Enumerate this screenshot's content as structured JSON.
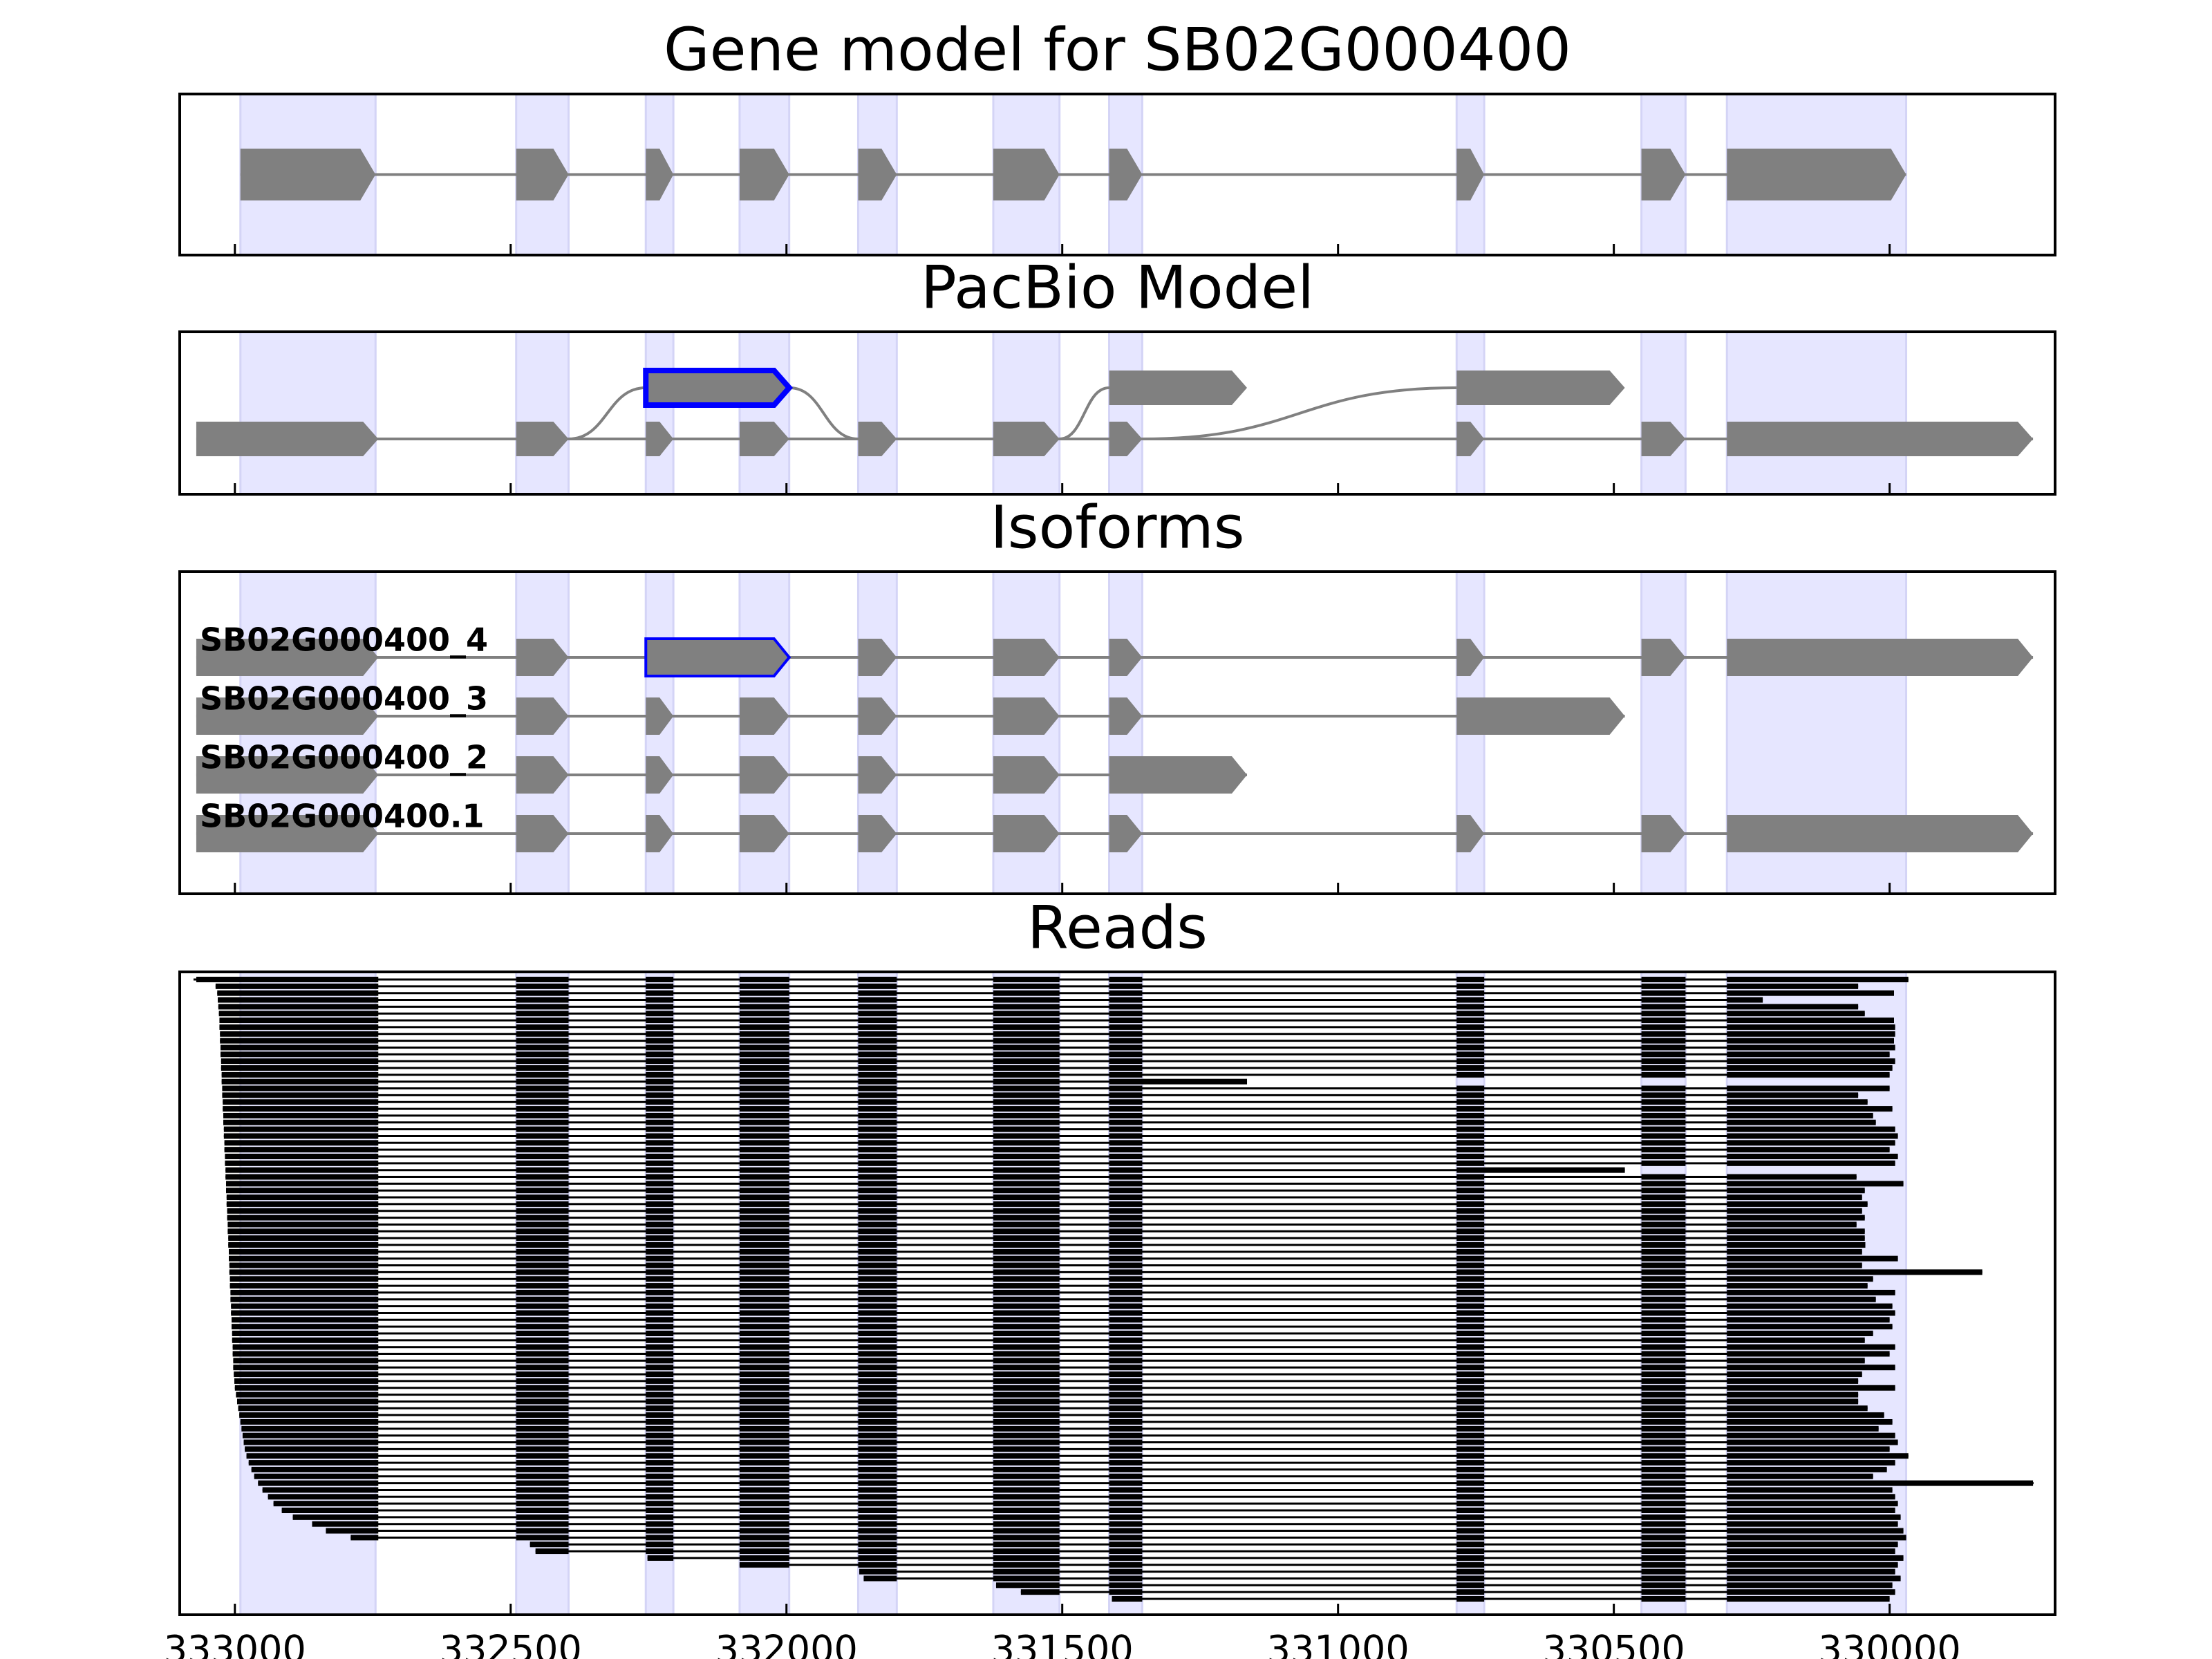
{
  "chart_data": {
    "type": "gene-tracks",
    "xlim": [
      333100,
      329700
    ],
    "xticks": [
      333000,
      332500,
      332000,
      331500,
      331000,
      330500,
      330000
    ],
    "feature_color": "#808080",
    "shade_color": "#e6e6ff",
    "read_color": "#000000",
    "highlight_color": "#0000ff",
    "panels": [
      {
        "type": "gene-model",
        "title": "Gene model for SB02G000400",
        "exons": [
          [
            332990,
            332745
          ],
          [
            332490,
            332395
          ],
          [
            332255,
            332205
          ],
          [
            332085,
            331995
          ],
          [
            331870,
            331800
          ],
          [
            331625,
            331505
          ],
          [
            331415,
            331355
          ],
          [
            330785,
            330735
          ],
          [
            330450,
            330370
          ],
          [
            330295,
            329970
          ]
        ]
      },
      {
        "type": "splice-graph",
        "title": "PacBio Model",
        "exons": [
          [
            333070,
            332740
          ],
          [
            332490,
            332395
          ],
          [
            332255,
            332205
          ],
          [
            332085,
            331995
          ],
          [
            331870,
            331800
          ],
          [
            331625,
            331505
          ],
          [
            331415,
            331355
          ],
          [
            330785,
            330735
          ],
          [
            330450,
            330370
          ],
          [
            330295,
            329740
          ]
        ],
        "alternatives": [
          [
            332255,
            331995
          ],
          [
            331415,
            331165
          ],
          [
            330785,
            330480
          ]
        ],
        "highlight": 0
      },
      {
        "type": "isoforms",
        "title": "Isoforms",
        "isoforms": [
          {
            "name": "SB02G000400_4",
            "exons": [
              [
                333070,
                332740
              ],
              [
                332490,
                332395
              ],
              [
                332255,
                331995
              ],
              [
                331870,
                331800
              ],
              [
                331625,
                331505
              ],
              [
                331415,
                331355
              ],
              [
                330785,
                330735
              ],
              [
                330450,
                330370
              ],
              [
                330295,
                329740
              ]
            ]
          },
          {
            "name": "SB02G000400_3",
            "exons": [
              [
                333070,
                332740
              ],
              [
                332490,
                332395
              ],
              [
                332255,
                332205
              ],
              [
                332085,
                331995
              ],
              [
                331870,
                331800
              ],
              [
                331625,
                331505
              ],
              [
                331415,
                331355
              ],
              [
                330785,
                330480
              ]
            ]
          },
          {
            "name": "SB02G000400_2",
            "exons": [
              [
                333070,
                332740
              ],
              [
                332490,
                332395
              ],
              [
                332255,
                332205
              ],
              [
                332085,
                331995
              ],
              [
                331870,
                331800
              ],
              [
                331625,
                331505
              ],
              [
                331415,
                331165
              ]
            ]
          },
          {
            "name": "SB02G000400.1",
            "exons": [
              [
                333070,
                332740
              ],
              [
                332490,
                332395
              ],
              [
                332255,
                332205
              ],
              [
                332085,
                331995
              ],
              [
                331870,
                331800
              ],
              [
                331625,
                331505
              ],
              [
                331415,
                331355
              ],
              [
                330785,
                330735
              ],
              [
                330450,
                330370
              ],
              [
                330295,
                329740
              ]
            ]
          }
        ],
        "highlight": [
          0,
          2
        ]
      },
      {
        "type": "reads",
        "title": "Reads",
        "reads": [
          [
            333075,
            329966,
            3
          ],
          [
            333035,
            330057,
            3
          ],
          [
            333032,
            329992,
            3
          ],
          [
            333031,
            330230,
            3
          ],
          [
            333030,
            330057,
            3
          ],
          [
            333029,
            330045,
            3
          ],
          [
            333028,
            329992,
            3
          ],
          [
            333028,
            329990,
            3
          ],
          [
            333027,
            329990,
            3
          ],
          [
            333027,
            329992,
            3
          ],
          [
            333026,
            329990,
            3
          ],
          [
            333026,
            330000,
            3
          ],
          [
            333025,
            329990,
            3
          ],
          [
            333025,
            329995,
            3
          ],
          [
            333024,
            330000,
            3
          ],
          [
            333024,
            331165,
            2
          ],
          [
            333023,
            330000,
            3
          ],
          [
            333023,
            330057,
            3
          ],
          [
            333022,
            330040,
            3
          ],
          [
            333022,
            329995,
            3
          ],
          [
            333021,
            330030,
            3
          ],
          [
            333021,
            330025,
            3
          ],
          [
            333020,
            329990,
            3
          ],
          [
            333020,
            329985,
            3
          ],
          [
            333019,
            329990,
            3
          ],
          [
            333019,
            330000,
            3
          ],
          [
            333018,
            329985,
            3
          ],
          [
            333018,
            329990,
            3
          ],
          [
            333017,
            330480,
            1
          ],
          [
            333017,
            330060,
            3
          ],
          [
            333016,
            329975,
            3
          ],
          [
            333016,
            330045,
            3
          ],
          [
            333015,
            330050,
            3
          ],
          [
            333015,
            330040,
            3
          ],
          [
            333014,
            330050,
            3
          ],
          [
            333014,
            330045,
            3
          ],
          [
            333013,
            330060,
            3
          ],
          [
            333013,
            330045,
            3
          ],
          [
            333012,
            330045,
            3
          ],
          [
            333012,
            330044,
            3
          ],
          [
            333011,
            330050,
            3
          ],
          [
            333011,
            329985,
            3
          ],
          [
            333010,
            330050,
            3
          ],
          [
            333010,
            329832,
            3
          ],
          [
            333009,
            330030,
            3
          ],
          [
            333009,
            330040,
            3
          ],
          [
            333008,
            329990,
            3
          ],
          [
            333008,
            330025,
            3
          ],
          [
            333007,
            329995,
            3
          ],
          [
            333007,
            329990,
            3
          ],
          [
            333006,
            330000,
            3
          ],
          [
            333006,
            329995,
            3
          ],
          [
            333005,
            330030,
            3
          ],
          [
            333005,
            330045,
            3
          ],
          [
            333004,
            329990,
            3
          ],
          [
            333004,
            330000,
            3
          ],
          [
            333003,
            330045,
            3
          ],
          [
            333003,
            329990,
            3
          ],
          [
            333002,
            330050,
            3
          ],
          [
            333001,
            330057,
            3
          ],
          [
            333000,
            329990,
            3
          ],
          [
            332998,
            330057,
            3
          ],
          [
            332996,
            330057,
            3
          ],
          [
            332994,
            330040,
            3
          ],
          [
            332992,
            330010,
            3
          ],
          [
            332990,
            329995,
            3
          ],
          [
            332988,
            330020,
            3
          ],
          [
            332986,
            329990,
            3
          ],
          [
            332984,
            329985,
            3
          ],
          [
            332982,
            330000,
            3
          ],
          [
            332979,
            329966,
            3
          ],
          [
            332975,
            329990,
            3
          ],
          [
            332970,
            330005,
            3
          ],
          [
            332965,
            330030,
            3
          ],
          [
            332958,
            329739,
            3
          ],
          [
            332950,
            329995,
            3
          ],
          [
            332940,
            329990,
            3
          ],
          [
            332930,
            329985,
            3
          ],
          [
            332915,
            329990,
            3
          ],
          [
            332895,
            329980,
            3
          ],
          [
            332860,
            329985,
            3
          ],
          [
            332835,
            329975,
            3
          ],
          [
            332790,
            329970,
            3
          ],
          [
            332465,
            329985,
            3
          ],
          [
            332455,
            329990,
            3
          ],
          [
            332252,
            329975,
            3
          ],
          [
            332085,
            329985,
            3
          ],
          [
            331868,
            329990,
            3
          ],
          [
            331860,
            329980,
            3
          ],
          [
            331620,
            329995,
            3
          ],
          [
            331575,
            329990,
            3
          ],
          [
            331410,
            330000,
            3
          ]
        ]
      }
    ]
  }
}
